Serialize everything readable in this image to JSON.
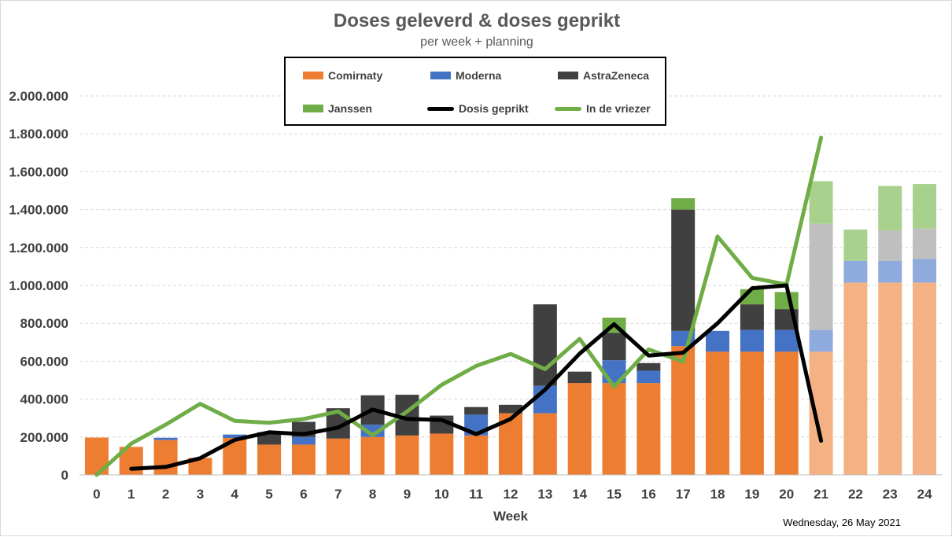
{
  "chart_data": {
    "type": "bar",
    "title": "Doses geleverd  &  doses geprikt",
    "subtitle": "per week + planning",
    "xlabel": "Week",
    "ylabel": "",
    "ylim": [
      0,
      2000000
    ],
    "yticks": [
      0,
      200000,
      400000,
      600000,
      800000,
      1000000,
      1200000,
      1400000,
      1600000,
      1800000,
      2000000
    ],
    "ytick_labels": [
      "0",
      "200.000",
      "400.000",
      "600.000",
      "800.000",
      "1.000.000",
      "1.200.000",
      "1.400.000",
      "1.600.000",
      "1.800.000",
      "2.000.000"
    ],
    "categories": [
      "0",
      "1",
      "2",
      "3",
      "4",
      "5",
      "6",
      "7",
      "8",
      "9",
      "10",
      "11",
      "12",
      "13",
      "14",
      "15",
      "16",
      "17",
      "18",
      "19",
      "20",
      "21",
      "22",
      "23",
      "24"
    ],
    "planning_from_index": 21,
    "grid": "horizontal dashed",
    "legend_position": "top",
    "stacked_series": [
      {
        "name": "Comirnaty",
        "color": "#ed7d31",
        "planned_color": "#f4b183",
        "values": [
          197000,
          148000,
          184000,
          90000,
          195000,
          160000,
          160000,
          192000,
          200000,
          208000,
          218000,
          208000,
          325000,
          325000,
          485000,
          485000,
          485000,
          680000,
          650000,
          650000,
          650000,
          650000,
          1015000,
          1015000,
          1015000
        ]
      },
      {
        "name": "Moderna",
        "color": "#4472c4",
        "planned_color": "#8faadc",
        "values": [
          0,
          0,
          12000,
          0,
          18000,
          0,
          40000,
          0,
          65000,
          0,
          0,
          110000,
          0,
          145000,
          0,
          120000,
          65000,
          80000,
          110000,
          115000,
          115000,
          115000,
          115000,
          115000,
          125000
        ]
      },
      {
        "name": "AstraZeneca",
        "color": "#404040",
        "planned_color": "#bfbfbf",
        "values": [
          0,
          0,
          0,
          0,
          0,
          65000,
          80000,
          160000,
          155000,
          215000,
          95000,
          40000,
          45000,
          430000,
          60000,
          145000,
          40000,
          640000,
          0,
          135000,
          110000,
          560000,
          0,
          160000,
          160000
        ]
      },
      {
        "name": "Janssen",
        "color": "#70ad47",
        "planned_color": "#a9d18e",
        "values": [
          0,
          0,
          0,
          0,
          0,
          0,
          0,
          0,
          0,
          0,
          0,
          0,
          0,
          0,
          0,
          80000,
          0,
          60000,
          0,
          80000,
          90000,
          225000,
          165000,
          235000,
          235000
        ]
      }
    ],
    "line_series": [
      {
        "name": "Dosis geprikt",
        "color": "#000000",
        "values": [
          null,
          32000,
          42000,
          88000,
          185000,
          225000,
          215000,
          250000,
          345000,
          295000,
          290000,
          215000,
          295000,
          450000,
          640000,
          795000,
          630000,
          645000,
          800000,
          985000,
          1000000,
          180000,
          null,
          null,
          null
        ]
      },
      {
        "name": "In de vriezer",
        "color": "#70ad47",
        "values": [
          0,
          165000,
          265000,
          375000,
          285000,
          275000,
          295000,
          335000,
          210000,
          335000,
          475000,
          575000,
          638000,
          558000,
          718000,
          465000,
          662000,
          598000,
          1258000,
          1040000,
          1005000,
          1780000,
          null,
          null,
          null
        ]
      }
    ]
  },
  "legend": {
    "items": [
      {
        "label": "Comirnaty",
        "kind": "box",
        "color": "#ed7d31"
      },
      {
        "label": "Moderna",
        "kind": "box",
        "color": "#4472c4"
      },
      {
        "label": "AstraZeneca",
        "kind": "box",
        "color": "#404040"
      },
      {
        "label": "Janssen",
        "kind": "box",
        "color": "#70ad47"
      },
      {
        "label": "Dosis geprikt",
        "kind": "line",
        "color": "#000000"
      },
      {
        "label": "In de vriezer",
        "kind": "line",
        "color": "#70ad47"
      }
    ]
  },
  "footer": {
    "date": "Wednesday, 26 May 2021"
  }
}
